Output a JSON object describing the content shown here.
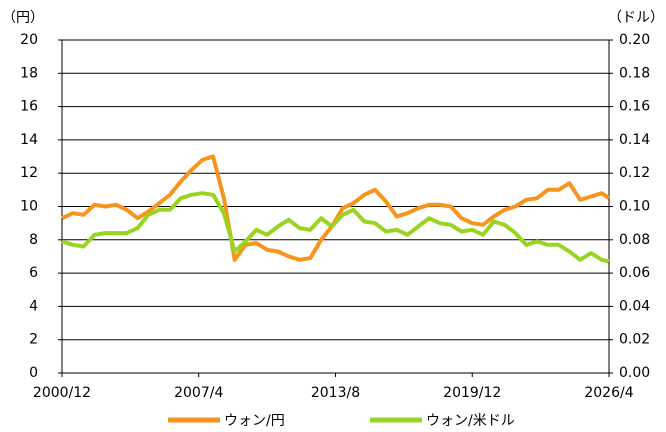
{
  "chart_data": {
    "type": "line",
    "y_label": "（円）",
    "y2_label": "（ドル）",
    "x": [
      "2000/12",
      "2001/6",
      "2001/12",
      "2002/6",
      "2002/12",
      "2003/6",
      "2003/12",
      "2004/6",
      "2004/12",
      "2005/6",
      "2005/12",
      "2006/6",
      "2006/12",
      "2007/6",
      "2007/12",
      "2008/6",
      "2008/12",
      "2009/6",
      "2009/12",
      "2010/6",
      "2010/12",
      "2011/6",
      "2011/12",
      "2012/6",
      "2012/12",
      "2013/6",
      "2013/12",
      "2014/6",
      "2014/12",
      "2015/6",
      "2015/12",
      "2016/6",
      "2016/12",
      "2017/6",
      "2017/12",
      "2018/6",
      "2018/12",
      "2019/6",
      "2019/12",
      "2020/6",
      "2020/12",
      "2021/6",
      "2021/12",
      "2022/6",
      "2022/12",
      "2023/6",
      "2023/12",
      "2024/6",
      "2024/12",
      "2025/6",
      "2025/12",
      "2026/4"
    ],
    "series": [
      {
        "name": "ウォン/円",
        "color": "#f7941d",
        "axis": "y",
        "values": [
          9.3,
          9.6,
          9.5,
          10.1,
          10.0,
          10.1,
          9.8,
          9.3,
          9.7,
          10.2,
          10.7,
          11.5,
          12.2,
          12.8,
          13.0,
          10.5,
          6.8,
          7.7,
          7.8,
          7.4,
          7.3,
          7.0,
          6.8,
          6.9,
          8.0,
          8.8,
          9.9,
          10.2,
          10.7,
          11.0,
          10.3,
          9.4,
          9.6,
          9.9,
          10.1,
          10.1,
          10.0,
          9.3,
          9.0,
          8.9,
          9.4,
          9.8,
          10.0,
          10.4,
          10.5,
          11.0,
          11.0,
          11.4,
          10.4,
          10.6,
          10.8,
          10.5
        ]
      },
      {
        "name": "ウォン/米ドル",
        "color": "#99d420",
        "axis": "y2",
        "values": [
          0.079,
          0.077,
          0.076,
          0.083,
          0.084,
          0.084,
          0.084,
          0.087,
          0.095,
          0.098,
          0.098,
          0.105,
          0.107,
          0.108,
          0.107,
          0.096,
          0.073,
          0.079,
          0.086,
          0.083,
          0.088,
          0.092,
          0.087,
          0.086,
          0.093,
          0.088,
          0.095,
          0.098,
          0.091,
          0.09,
          0.085,
          0.086,
          0.083,
          0.088,
          0.093,
          0.09,
          0.089,
          0.085,
          0.086,
          0.083,
          0.091,
          0.089,
          0.084,
          0.077,
          0.079,
          0.077,
          0.077,
          0.073,
          0.068,
          0.072,
          0.068,
          0.067
        ]
      }
    ],
    "xlim": [
      "2000/12",
      "2026/4"
    ],
    "xticks": [
      "2000/12",
      "2007/4",
      "2013/8",
      "2019/12",
      "2026/4"
    ],
    "ylim": [
      0,
      20
    ],
    "yticks": [
      0,
      2,
      4,
      6,
      8,
      10,
      12,
      14,
      16,
      18,
      20
    ],
    "y2lim": [
      0,
      0.2
    ],
    "y2ticks": [
      {
        "value": 0,
        "label": "0.00"
      },
      {
        "value": 0.02,
        "label": "0.02"
      },
      {
        "value": 0.04,
        "label": "0.04"
      },
      {
        "value": 0.06,
        "label": "0.06"
      },
      {
        "value": 0.08,
        "label": "0.08"
      },
      {
        "value": 0.1,
        "label": "0.10"
      },
      {
        "value": 0.12,
        "label": "0.12"
      },
      {
        "value": 0.14,
        "label": "0.14"
      },
      {
        "value": 0.16,
        "label": "0.16"
      },
      {
        "value": 0.18,
        "label": "0.18"
      },
      {
        "value": 0.2,
        "label": "0.20"
      }
    ],
    "grid": true,
    "legend": "bottom"
  }
}
